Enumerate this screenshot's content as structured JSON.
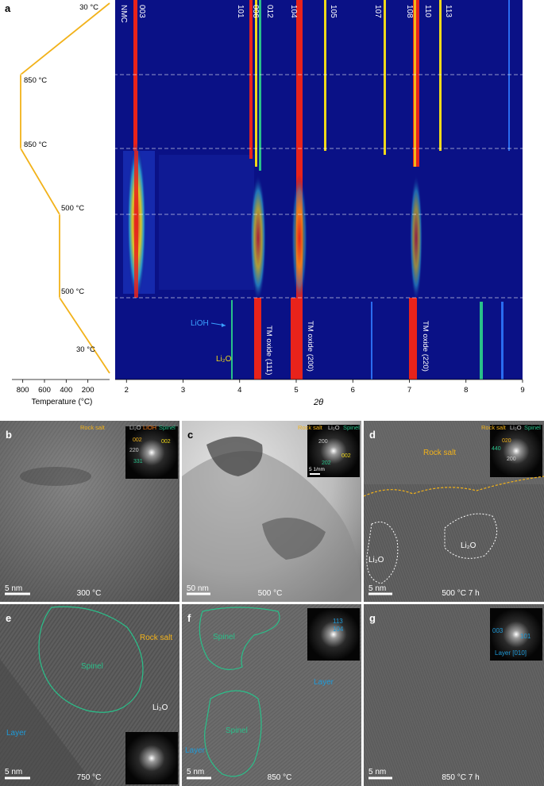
{
  "panel_labels": {
    "a": "a",
    "b": "b",
    "c": "c",
    "d": "d",
    "e": "e",
    "f": "f",
    "g": "g"
  },
  "temperature_profile": {
    "xlabel": "Temperature (°C)",
    "x_ticks": [
      "800",
      "600",
      "400",
      "200"
    ],
    "labels": {
      "start": "30 °C",
      "hold1": "850 °C",
      "hold1_end": "850 °C",
      "hold2": "500 °C",
      "hold2_end": "500 °C",
      "end": "30 °C"
    },
    "color": "#f2b21a"
  },
  "xrd": {
    "xlabel": "2θ",
    "x_ticks": [
      "2",
      "3",
      "4",
      "5",
      "6",
      "7",
      "8",
      "9"
    ],
    "xlim": [
      1.8,
      9.0
    ],
    "top_peaks": [
      "NMC",
      "003",
      "101",
      "006",
      "012",
      "104",
      "105",
      "107",
      "108",
      "110",
      "113"
    ],
    "phase_labels": {
      "lioh": "LiOH",
      "li2o": "Li₂O",
      "tm111": "TM oxide (111)",
      "tm200": "TM oxide (200)",
      "tm220": "TM oxide (220)"
    },
    "colors": {
      "background": "#0a1186",
      "strong": "#e8231b",
      "medium": "#f0d81a",
      "weak": "#29c08a"
    }
  },
  "tem": {
    "b": {
      "inset_legend": [
        "Rock salt",
        "Li₂O",
        "LiOH",
        "Spinel"
      ],
      "inset_labels": [
        "002",
        "002",
        "220",
        "331"
      ],
      "scale": "5 nm",
      "temp": "300 °C"
    },
    "c": {
      "inset_legend": [
        "Rock salt",
        "Li₂O",
        "Spinel"
      ],
      "inset_labels": [
        "200",
        "002",
        "202"
      ],
      "inset_scale": "5 1/nm",
      "scale": "50 nm",
      "temp": "500 °C"
    },
    "d": {
      "inset_legend": [
        "Rock salt",
        "Li₂O",
        "Spinel"
      ],
      "inset_labels": [
        "020",
        "440",
        "200"
      ],
      "regions": [
        "Rock salt",
        "Li₂O",
        "Li₂O"
      ],
      "scale": "5 nm",
      "temp": "500 °C 7 h"
    },
    "e": {
      "regions": [
        "Rock salt",
        "Spinel",
        "Li₂O",
        "Layer"
      ],
      "scale": "5 nm",
      "temp": "750 °C"
    },
    "f": {
      "inset_labels": [
        "113",
        "104"
      ],
      "regions": [
        "Spinel",
        "Layer",
        "Spinel",
        "Layer"
      ],
      "scale": "5 nm",
      "temp": "850 °C"
    },
    "g": {
      "inset_labels": [
        "003",
        "101"
      ],
      "inset_caption": "Layer [010]",
      "scale": "5 nm",
      "temp": "850 °C 7 h"
    }
  }
}
